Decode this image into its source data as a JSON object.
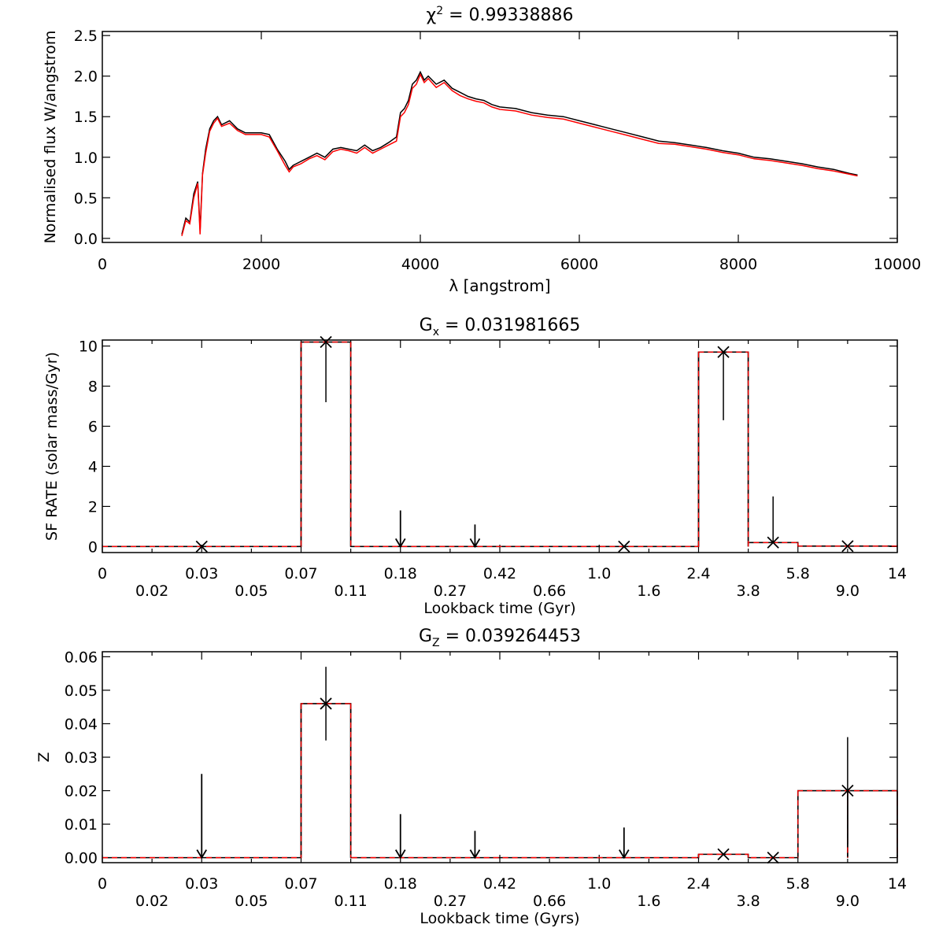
{
  "chart_data": [
    {
      "type": "line",
      "title": "χ² = 0.99338886",
      "title_main": "χ",
      "title_sup": "2",
      "title_rest": " = 0.99338886",
      "xlabel": "λ [angstrom]",
      "ylabel": "Normalised flux W/angstrom",
      "xlim": [
        0,
        10000
      ],
      "ylim": [
        -0.05,
        2.55
      ],
      "xticks": [
        0,
        2000,
        4000,
        6000,
        8000,
        10000
      ],
      "xtick_labels": [
        "0",
        "2000",
        "4000",
        "6000",
        "8000",
        "10000"
      ],
      "yticks": [
        0.0,
        0.5,
        1.0,
        1.5,
        2.0,
        2.5
      ],
      "ytick_labels": [
        "0.0",
        "0.5",
        "1.0",
        "1.5",
        "2.0",
        "2.5"
      ],
      "series": [
        {
          "color": "#000000",
          "x": [
            1000,
            1050,
            1100,
            1150,
            1200,
            1230,
            1260,
            1300,
            1350,
            1400,
            1450,
            1500,
            1600,
            1700,
            1800,
            1900,
            2000,
            2100,
            2200,
            2300,
            2350,
            2400,
            2500,
            2600,
            2700,
            2800,
            2900,
            3000,
            3100,
            3200,
            3300,
            3400,
            3500,
            3600,
            3700,
            3750,
            3800,
            3850,
            3900,
            3950,
            4000,
            4050,
            4100,
            4200,
            4300,
            4400,
            4500,
            4600,
            4700,
            4800,
            4900,
            5000,
            5200,
            5400,
            5600,
            5800,
            6000,
            6200,
            6400,
            6600,
            6800,
            7000,
            7200,
            7400,
            7600,
            7800,
            8000,
            8200,
            8400,
            8600,
            8800,
            9000,
            9200,
            9400,
            9500
          ],
          "y": [
            0.05,
            0.25,
            0.2,
            0.55,
            0.7,
            0.1,
            0.8,
            1.1,
            1.35,
            1.45,
            1.5,
            1.4,
            1.45,
            1.35,
            1.3,
            1.3,
            1.3,
            1.28,
            1.1,
            0.95,
            0.85,
            0.9,
            0.95,
            1.0,
            1.05,
            1.0,
            1.1,
            1.12,
            1.1,
            1.08,
            1.15,
            1.08,
            1.12,
            1.18,
            1.25,
            1.55,
            1.6,
            1.7,
            1.9,
            1.95,
            2.05,
            1.95,
            2.0,
            1.9,
            1.95,
            1.85,
            1.8,
            1.75,
            1.72,
            1.7,
            1.65,
            1.62,
            1.6,
            1.55,
            1.52,
            1.5,
            1.45,
            1.4,
            1.35,
            1.3,
            1.25,
            1.2,
            1.18,
            1.15,
            1.12,
            1.08,
            1.05,
            1.0,
            0.98,
            0.95,
            0.92,
            0.88,
            0.85,
            0.8,
            0.78
          ]
        },
        {
          "color": "#ff0000",
          "x": [
            1000,
            1050,
            1100,
            1150,
            1200,
            1230,
            1260,
            1300,
            1350,
            1400,
            1450,
            1500,
            1600,
            1700,
            1800,
            1900,
            2000,
            2100,
            2200,
            2300,
            2350,
            2400,
            2500,
            2600,
            2700,
            2800,
            2900,
            3000,
            3100,
            3200,
            3300,
            3400,
            3500,
            3600,
            3700,
            3750,
            3800,
            3850,
            3900,
            3950,
            4000,
            4050,
            4100,
            4200,
            4300,
            4400,
            4500,
            4600,
            4700,
            4800,
            4900,
            5000,
            5200,
            5400,
            5600,
            5800,
            6000,
            6200,
            6400,
            6600,
            6800,
            7000,
            7200,
            7400,
            7600,
            7800,
            8000,
            8200,
            8400,
            8600,
            8800,
            9000,
            9200,
            9400,
            9500
          ],
          "y": [
            0.03,
            0.22,
            0.18,
            0.5,
            0.68,
            0.05,
            0.78,
            1.05,
            1.32,
            1.42,
            1.48,
            1.38,
            1.42,
            1.33,
            1.28,
            1.28,
            1.28,
            1.25,
            1.08,
            0.9,
            0.82,
            0.88,
            0.92,
            0.98,
            1.02,
            0.97,
            1.07,
            1.1,
            1.08,
            1.05,
            1.12,
            1.05,
            1.1,
            1.15,
            1.2,
            1.5,
            1.55,
            1.65,
            1.85,
            1.9,
            2.02,
            1.92,
            1.97,
            1.86,
            1.92,
            1.82,
            1.76,
            1.72,
            1.69,
            1.67,
            1.62,
            1.59,
            1.57,
            1.52,
            1.49,
            1.47,
            1.42,
            1.37,
            1.32,
            1.27,
            1.22,
            1.17,
            1.16,
            1.13,
            1.1,
            1.06,
            1.03,
            0.98,
            0.96,
            0.93,
            0.9,
            0.86,
            0.83,
            0.79,
            0.77
          ]
        }
      ],
      "grid": false
    },
    {
      "type": "bar",
      "title": "Gₓ = 0.031981665",
      "title_main": "G",
      "title_sub": "x",
      "title_rest": " = 0.031981665",
      "xlabel": "Lookback time (Gyr)",
      "ylabel": "SF RATE (solar mass/Gyr)",
      "ylim": [
        -0.3,
        10.3
      ],
      "yticks": [
        0,
        2,
        4,
        6,
        8,
        10
      ],
      "ytick_labels": [
        "0",
        "2",
        "4",
        "6",
        "8",
        "10"
      ],
      "xtick_upper": [
        "0",
        "0.03",
        "0.07",
        "0.18",
        "0.42",
        "1.0",
        "2.4",
        "5.8",
        "14"
      ],
      "xtick_lower": [
        "0.02",
        "0.05",
        "0.11",
        "0.27",
        "0.66",
        "1.6",
        "3.8",
        "9.0"
      ],
      "bins": 16,
      "values": [
        0,
        0,
        0,
        0,
        10.2,
        0,
        0,
        0,
        0,
        0,
        0,
        0,
        9.7,
        0.2,
        0.02,
        0.02
      ],
      "markers": [
        {
          "bin": 2,
          "y": 0,
          "kind": "x"
        },
        {
          "bin": 4.5,
          "y": 10.2,
          "kind": "x",
          "err_low": 7.2
        },
        {
          "bin": 6,
          "y": 0,
          "kind": "arrow",
          "top": 1.8
        },
        {
          "bin": 7.5,
          "y": 0,
          "kind": "arrow",
          "top": 1.1
        },
        {
          "bin": 10.5,
          "y": 0,
          "kind": "x"
        },
        {
          "bin": 12.5,
          "y": 9.7,
          "kind": "x",
          "err_low": 6.3
        },
        {
          "bin": 13.5,
          "y": 0.2,
          "kind": "x",
          "err_high": 2.5
        },
        {
          "bin": 15,
          "y": 0.02,
          "kind": "x"
        }
      ]
    },
    {
      "type": "bar",
      "title": "G_Z = 0.039264453",
      "title_main": "G",
      "title_sub": "Z",
      "title_rest": " = 0.039264453",
      "xlabel": "Lookback time (Gyrs)",
      "ylabel": "Z",
      "ylim": [
        -0.0015,
        0.0615
      ],
      "yticks": [
        0.0,
        0.01,
        0.02,
        0.03,
        0.04,
        0.05,
        0.06
      ],
      "ytick_labels": [
        "0.00",
        "0.01",
        "0.02",
        "0.03",
        "0.04",
        "0.05",
        "0.06"
      ],
      "xtick_upper": [
        "0",
        "0.03",
        "0.07",
        "0.18",
        "0.42",
        "1.0",
        "2.4",
        "5.8",
        "14"
      ],
      "xtick_lower": [
        "0.02",
        "0.05",
        "0.11",
        "0.27",
        "0.66",
        "1.6",
        "3.8",
        "9.0"
      ],
      "bins": 16,
      "values": [
        0,
        0,
        0,
        0,
        0.046,
        0,
        0,
        0,
        0,
        0,
        0,
        0,
        0.001,
        0,
        0.02,
        0.02
      ],
      "markers": [
        {
          "bin": 2,
          "y": 0,
          "kind": "arrow",
          "top": 0.025
        },
        {
          "bin": 4.5,
          "y": 0.046,
          "kind": "x",
          "err_low": 0.035,
          "err_high": 0.057
        },
        {
          "bin": 6,
          "y": 0,
          "kind": "arrow",
          "top": 0.013
        },
        {
          "bin": 7.5,
          "y": 0,
          "kind": "arrow",
          "top": 0.008
        },
        {
          "bin": 10.5,
          "y": 0,
          "kind": "arrow",
          "top": 0.009
        },
        {
          "bin": 12.5,
          "y": 0.001,
          "kind": "x"
        },
        {
          "bin": 13.5,
          "y": 0,
          "kind": "x"
        },
        {
          "bin": 15,
          "y": 0.02,
          "kind": "x",
          "err_low": 0.004,
          "err_high": 0.036
        }
      ]
    }
  ]
}
